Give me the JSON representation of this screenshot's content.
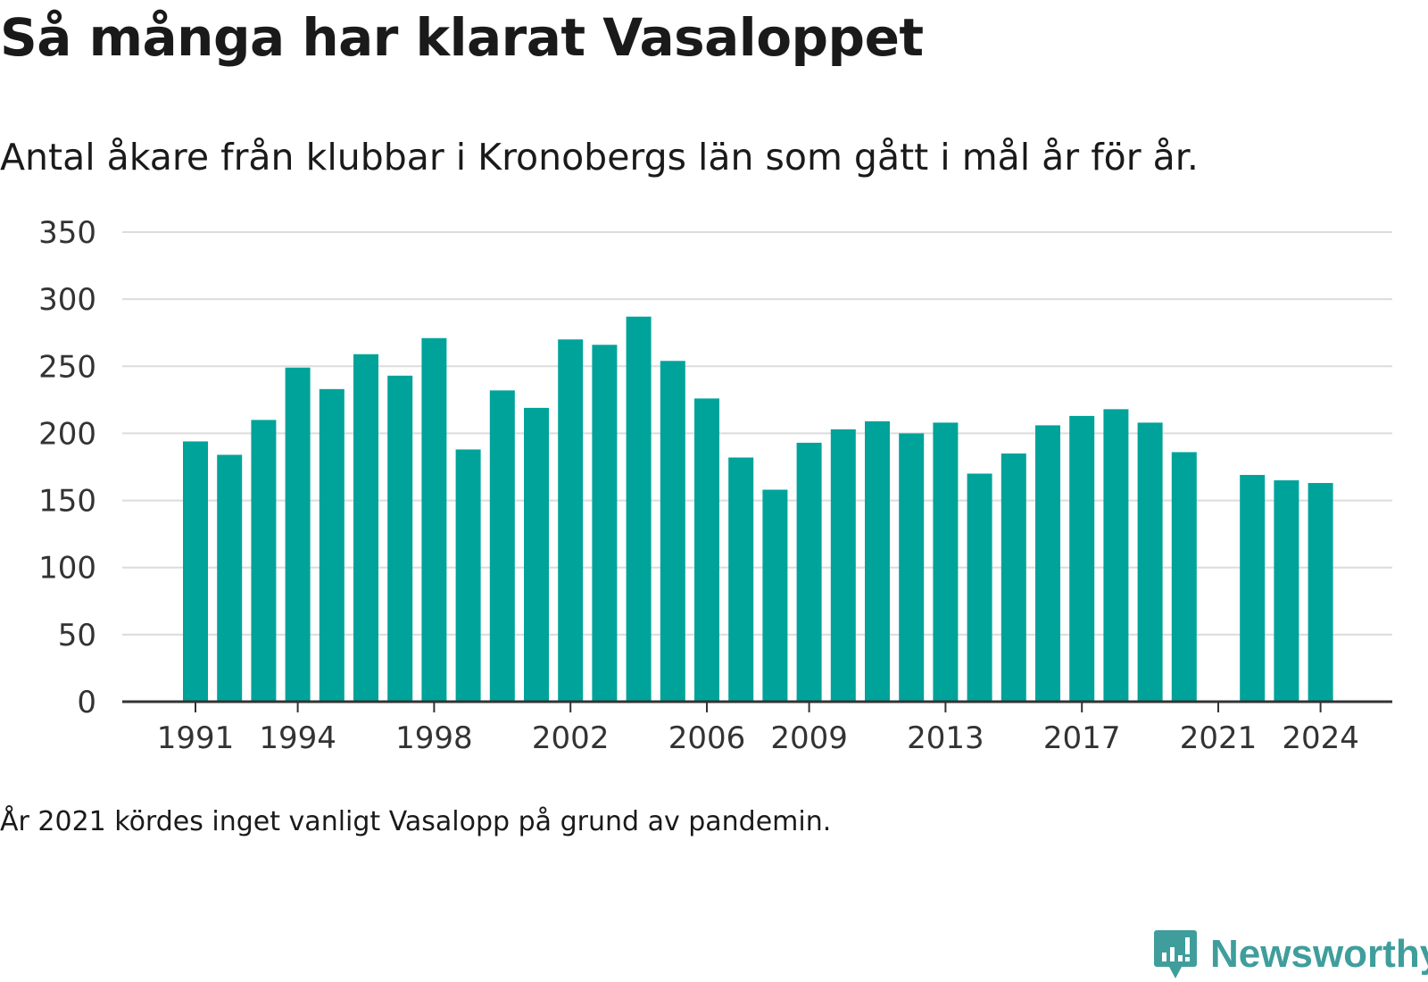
{
  "title": "Så många har klarat Vasaloppet",
  "subtitle": "Antal åkare från klubbar i Kronobergs län som gått i mål år för år.",
  "note": "År 2021 kördes inget vanligt Vasalopp på grund av pandemin.",
  "brand": "Newsworthy",
  "colors": {
    "bar": "#00a39a",
    "grid": "#dcdcdc",
    "axis": "#333333",
    "brand": "#3f9e9c"
  },
  "chart_data": {
    "type": "bar",
    "categories": [
      1991,
      1992,
      1993,
      1994,
      1995,
      1996,
      1997,
      1998,
      1999,
      2000,
      2001,
      2002,
      2003,
      2004,
      2005,
      2006,
      2007,
      2008,
      2009,
      2010,
      2011,
      2012,
      2013,
      2014,
      2015,
      2016,
      2017,
      2018,
      2019,
      2020,
      2021,
      2022,
      2023,
      2024
    ],
    "values": [
      194,
      184,
      210,
      249,
      233,
      259,
      243,
      271,
      188,
      232,
      219,
      270,
      266,
      287,
      254,
      226,
      182,
      158,
      193,
      203,
      209,
      200,
      208,
      170,
      185,
      206,
      213,
      218,
      208,
      186,
      null,
      169,
      165,
      163
    ],
    "xticks": [
      "1991",
      "1994",
      "1998",
      "2002",
      "2006",
      "2009",
      "2013",
      "2017",
      "2021",
      "2024"
    ],
    "yticks": [
      "0",
      "50",
      "100",
      "150",
      "200",
      "250",
      "300",
      "350"
    ],
    "ylim": [
      0,
      350
    ],
    "grid": true,
    "xlabel": "",
    "ylabel": ""
  }
}
